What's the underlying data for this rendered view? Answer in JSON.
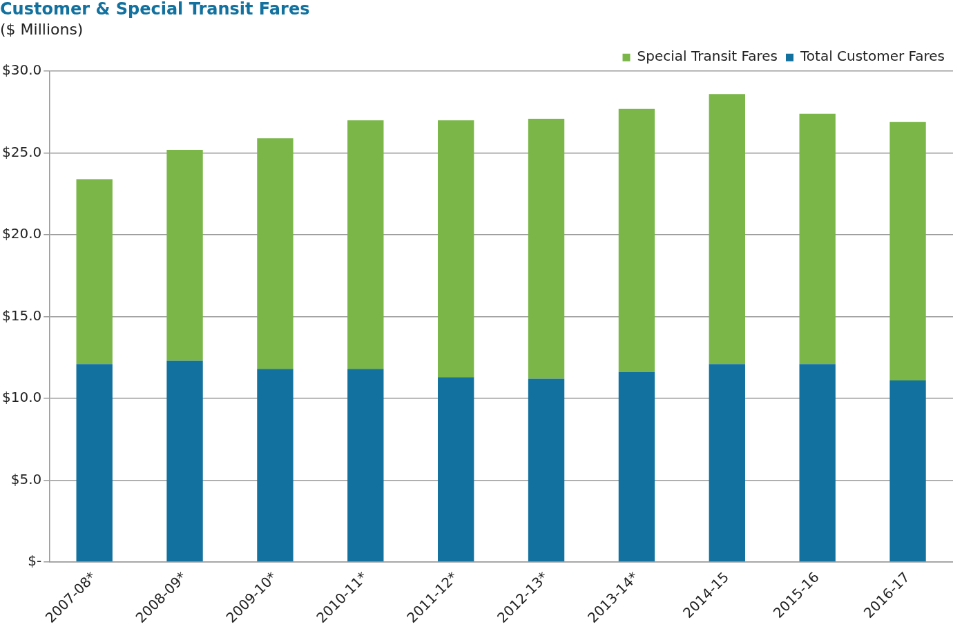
{
  "chart_data": {
    "type": "bar",
    "title": "Customer & Special Transit Fares",
    "subtitle": "($ Millions)",
    "categories": [
      "2007-08*",
      "2008-09*",
      "2009-10*",
      "2010-11*",
      "2011-12*",
      "2012-13*",
      "2013-14*",
      "2014-15",
      "2015-16",
      "2016-17"
    ],
    "series": [
      {
        "name": "Total Customer Fares",
        "color": "#12719e",
        "values": [
          12.1,
          12.3,
          11.8,
          11.8,
          11.3,
          11.2,
          11.6,
          12.1,
          12.1,
          11.1
        ]
      },
      {
        "name": "Special Transit Fares",
        "color": "#7ab648",
        "values": [
          11.3,
          12.9,
          14.1,
          15.2,
          15.7,
          15.9,
          16.1,
          16.5,
          15.3,
          15.8
        ]
      }
    ],
    "stacked": true,
    "ylim": [
      0,
      30
    ],
    "yticks": [
      {
        "value": 0,
        "label": "$-"
      },
      {
        "value": 5,
        "label": "$5.0"
      },
      {
        "value": 10,
        "label": "$10.0"
      },
      {
        "value": 15,
        "label": "$15.0"
      },
      {
        "value": 20,
        "label": "$20.0"
      },
      {
        "value": 25,
        "label": "$25.0"
      },
      {
        "value": 30,
        "label": "$30.0"
      }
    ],
    "grid": "y",
    "legend": "top right"
  }
}
